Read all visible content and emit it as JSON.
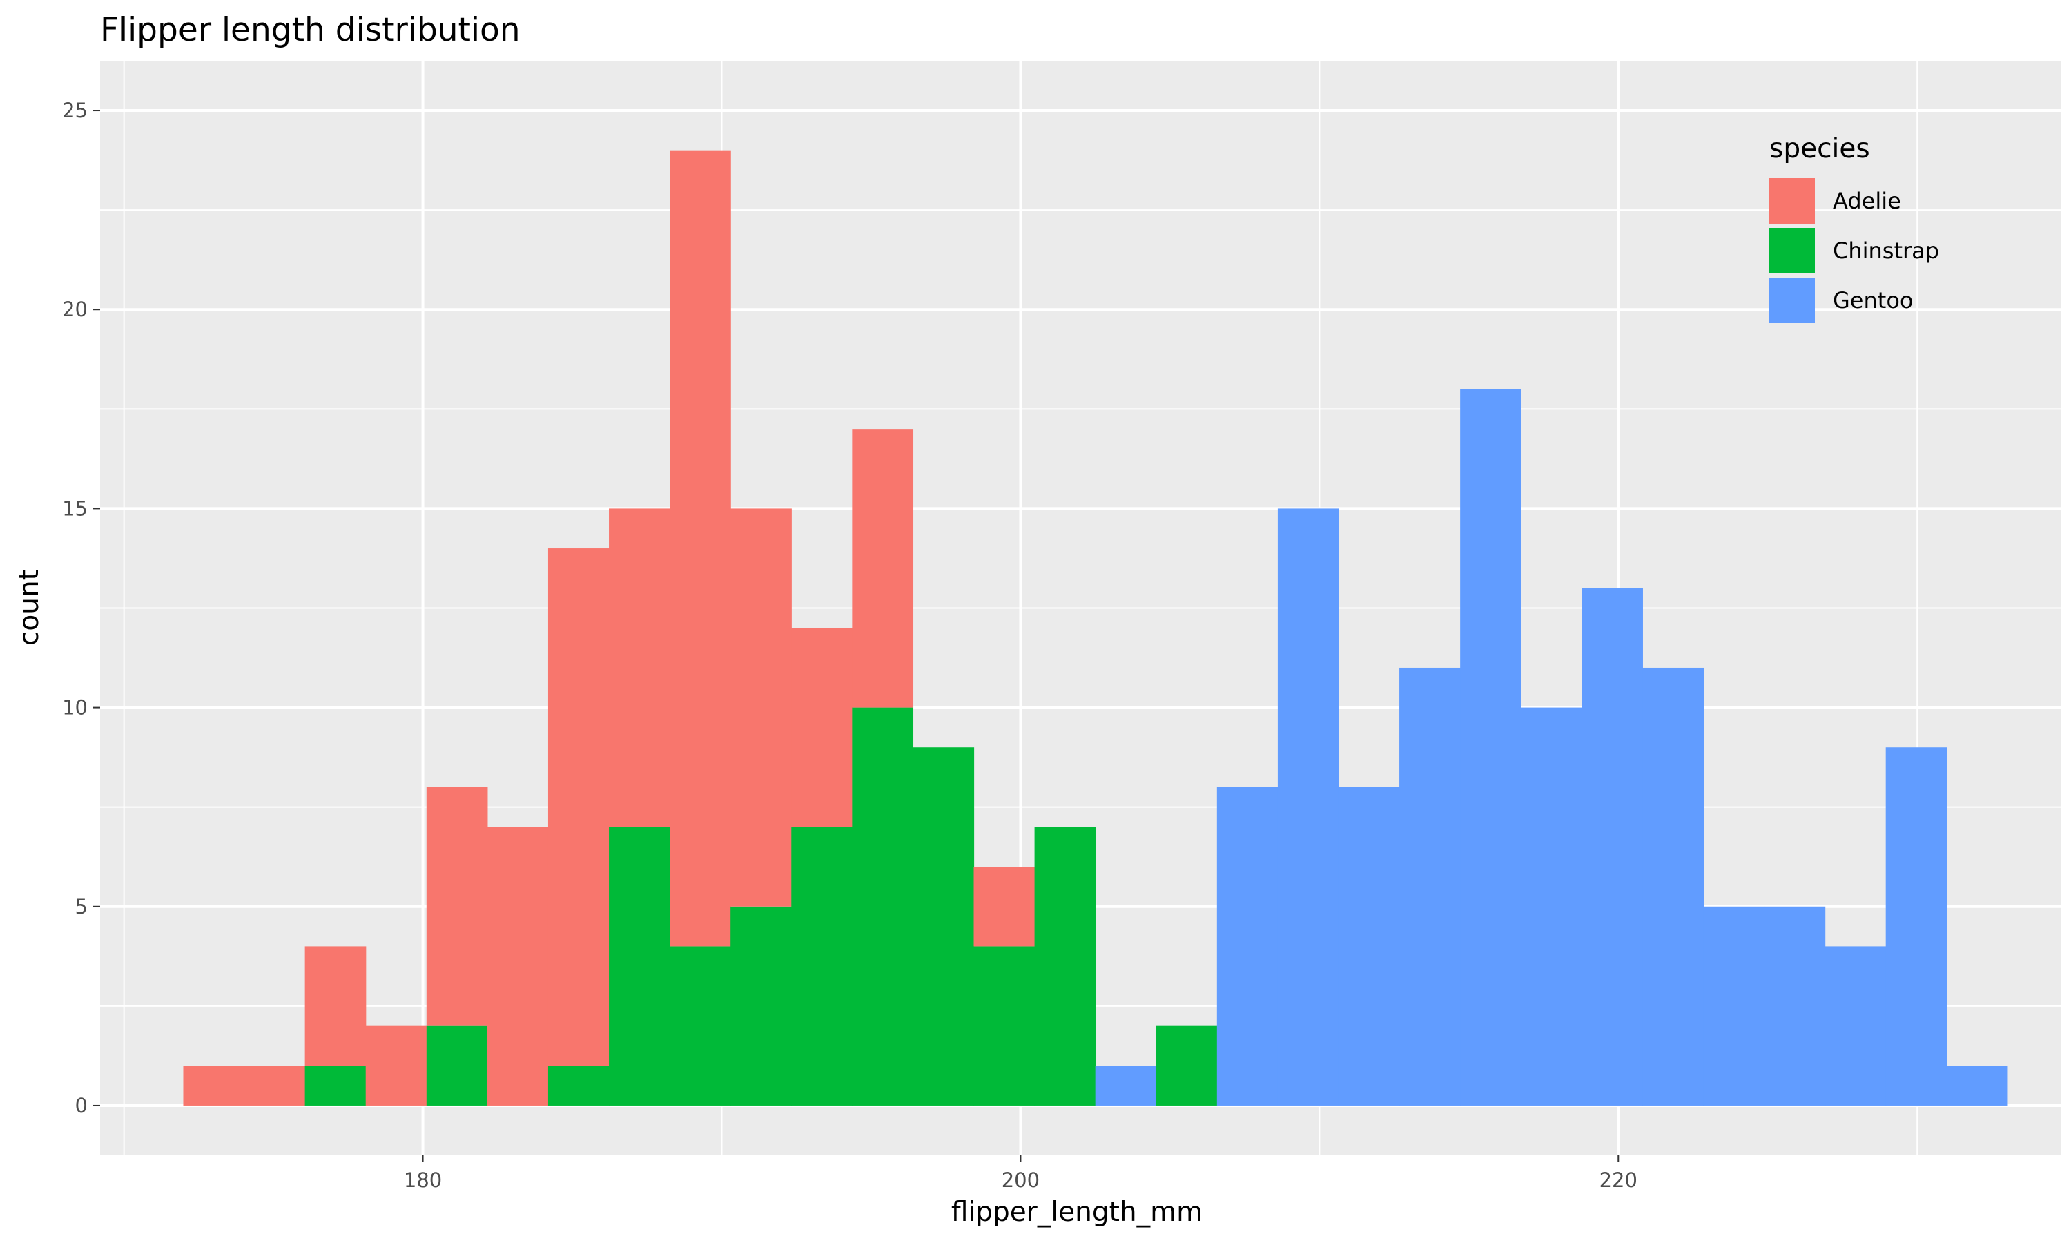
{
  "chart_data": {
    "type": "bar",
    "stacking": "stacked",
    "title": "Flipper length distribution",
    "xlabel": "flipper_length_mm",
    "ylabel": "count",
    "xlim": [
      169.2,
      234.8
    ],
    "ylim": [
      -1.25,
      26.25
    ],
    "x_ticks": [
      180,
      200,
      220
    ],
    "y_ticks": [
      0,
      5,
      10,
      15,
      20,
      25
    ],
    "bin_width": 2.0345,
    "bin_start": 171.983,
    "grid": true,
    "legend": {
      "title": "species",
      "placement": "top-right"
    },
    "series": [
      {
        "name": "Adelie",
        "color": "#F8766D",
        "values": [
          1,
          1,
          3,
          2,
          6,
          7,
          13,
          8,
          20,
          10,
          5,
          7,
          0,
          2,
          0,
          0,
          0,
          0,
          0,
          0,
          0,
          0,
          0,
          0,
          0,
          0,
          0,
          0,
          0,
          0,
          0,
          0
        ]
      },
      {
        "name": "Chinstrap",
        "color": "#00BA38",
        "values": [
          0,
          0,
          1,
          0,
          2,
          0,
          1,
          7,
          4,
          5,
          7,
          10,
          9,
          4,
          7,
          0,
          2,
          0,
          0,
          0,
          0,
          0,
          0,
          0,
          0,
          0,
          0,
          0,
          0,
          0,
          0,
          0
        ]
      },
      {
        "name": "Gentoo",
        "color": "#619CFF",
        "values": [
          0,
          0,
          0,
          0,
          0,
          0,
          0,
          0,
          0,
          0,
          0,
          0,
          0,
          0,
          0,
          1,
          0,
          8,
          15,
          8,
          11,
          18,
          10,
          13,
          11,
          5,
          5,
          4,
          9,
          1,
          0,
          0
        ]
      }
    ]
  }
}
